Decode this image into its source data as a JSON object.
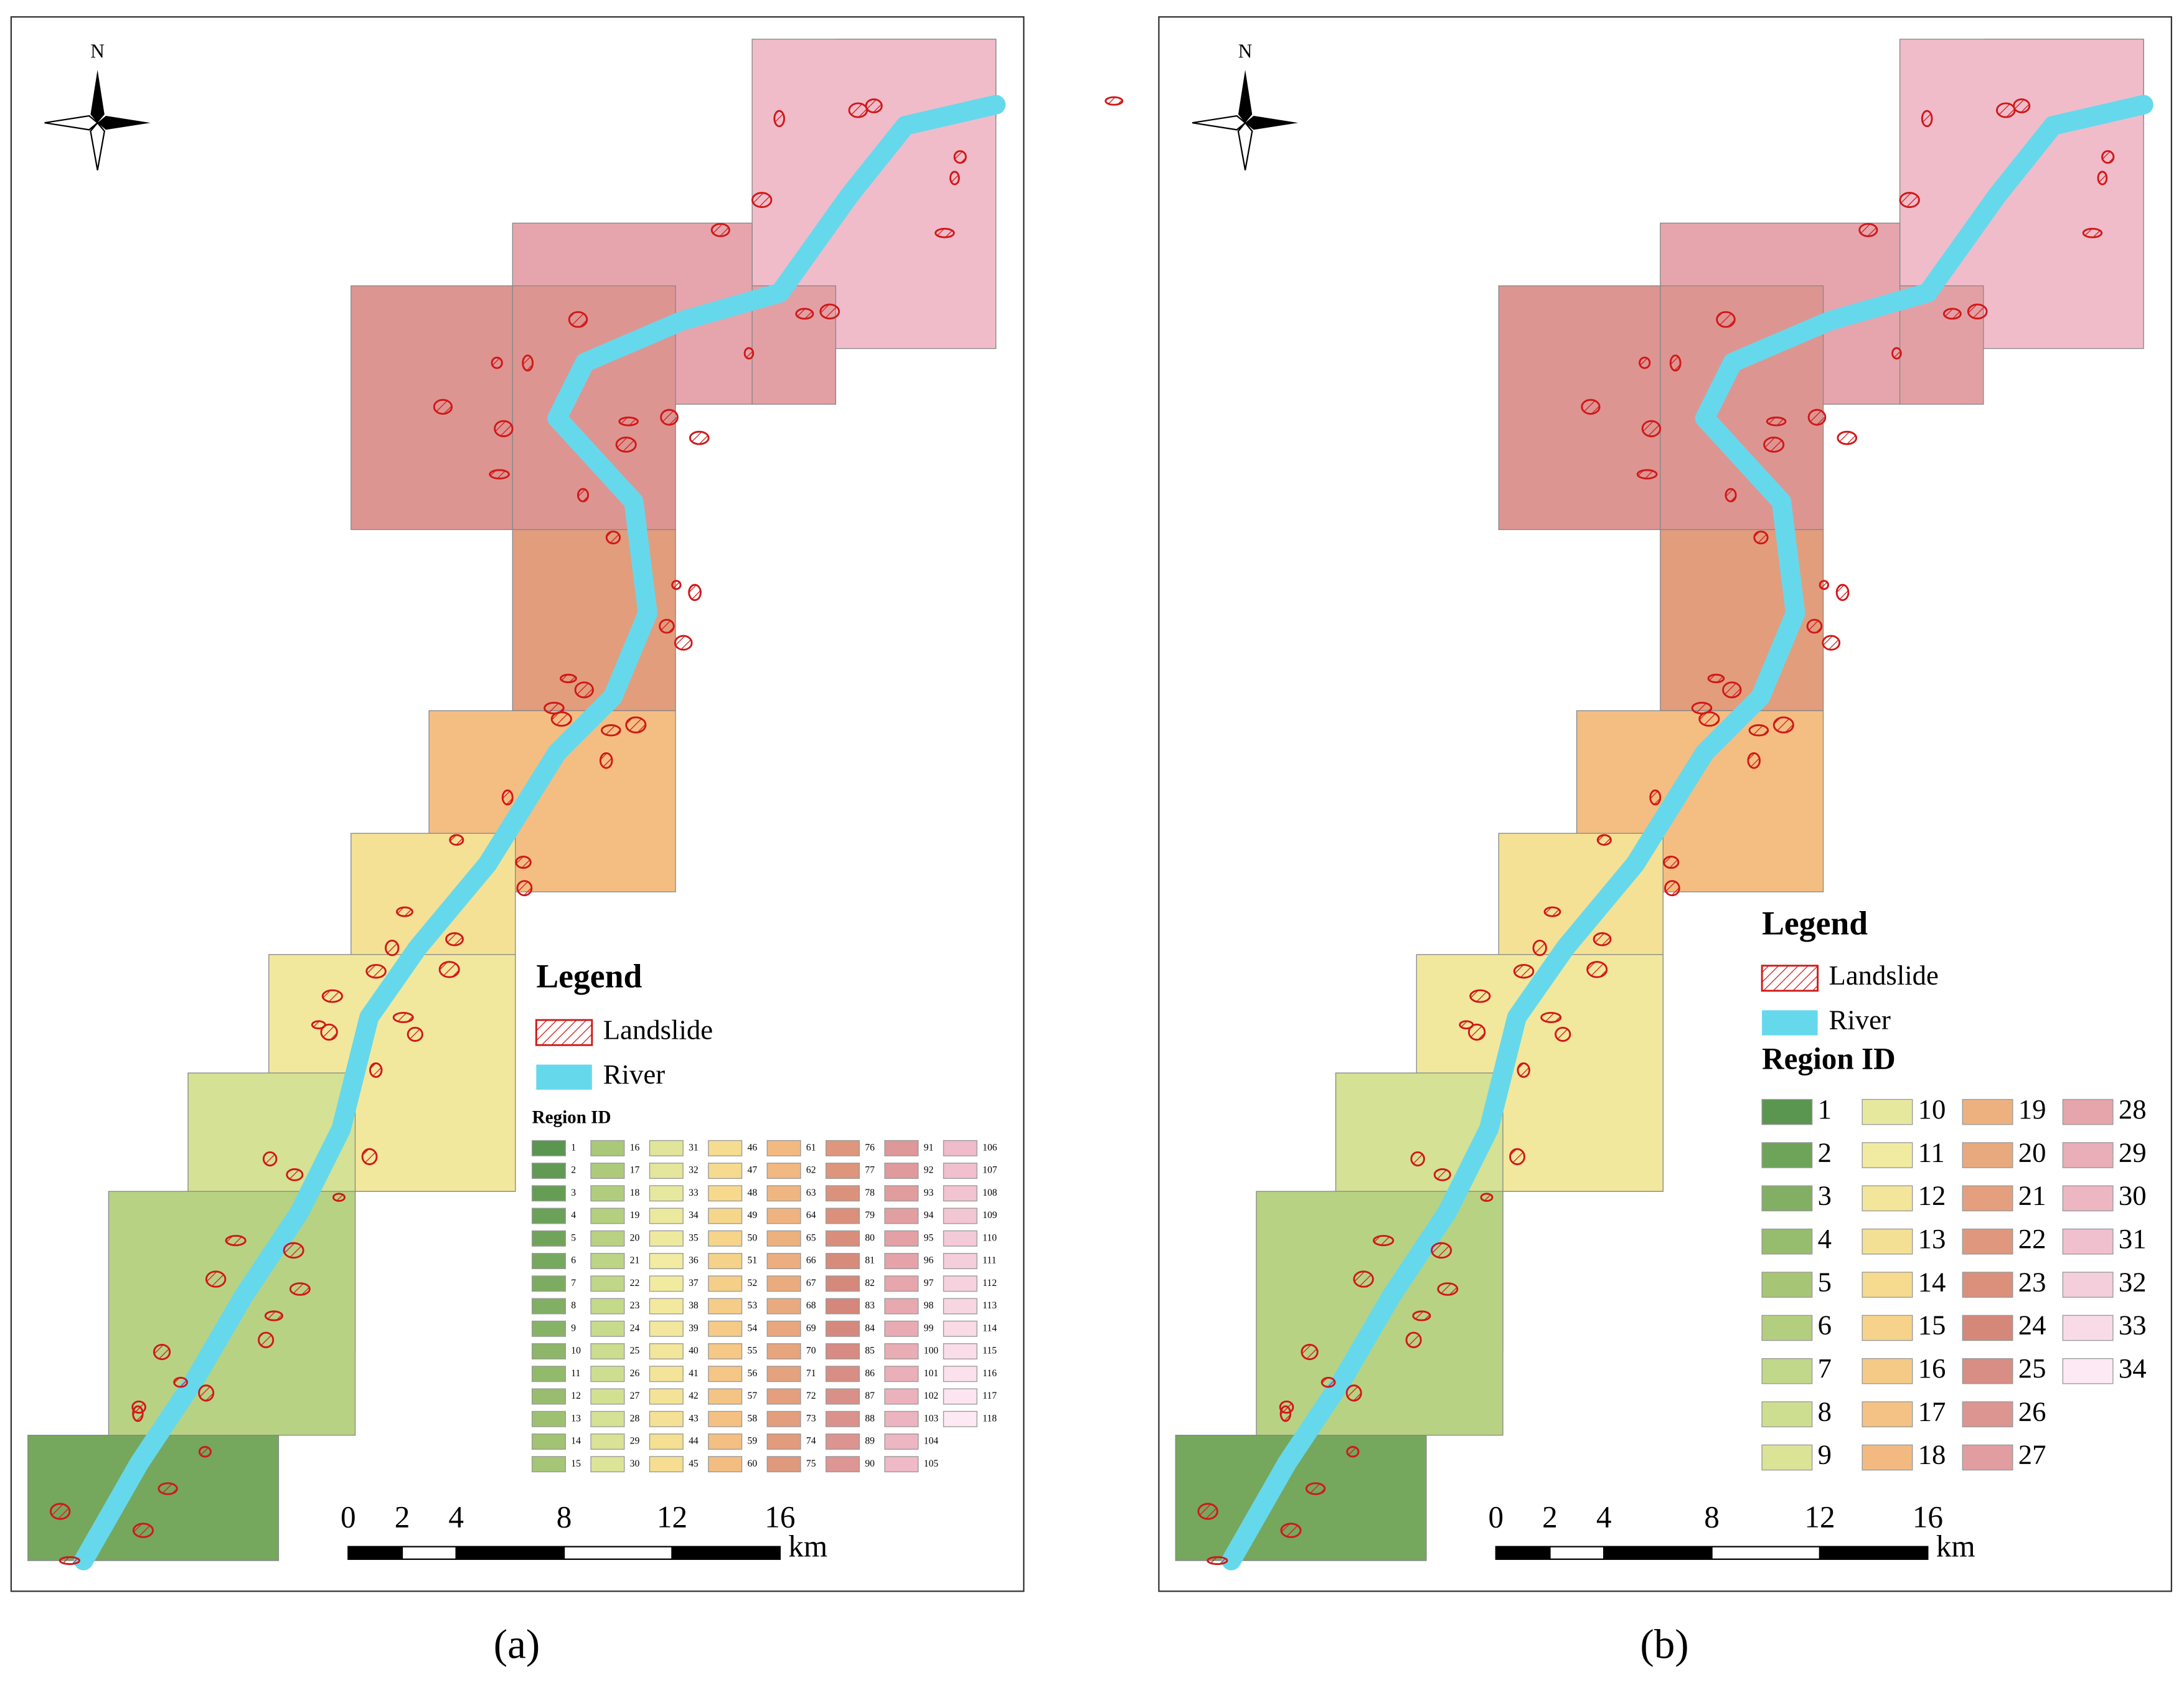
{
  "panels": [
    {
      "label": "(a)",
      "north": "N",
      "legend": {
        "title": "Legend",
        "items": [
          "Landslide",
          "River"
        ],
        "region_title": "Region ID",
        "region_ids": [
          1,
          2,
          3,
          4,
          5,
          6,
          7,
          8,
          9,
          10,
          11,
          12,
          13,
          14,
          15,
          16,
          17,
          18,
          19,
          20,
          21,
          22,
          23,
          24,
          25,
          26,
          27,
          28,
          29,
          30,
          31,
          32,
          33,
          34,
          35,
          36,
          37,
          38,
          39,
          40,
          41,
          42,
          43,
          44,
          45,
          46,
          47,
          48,
          49,
          50,
          51,
          52,
          53,
          54,
          55,
          56,
          57,
          58,
          59,
          60,
          61,
          62,
          63,
          64,
          65,
          66,
          67,
          68,
          69,
          70,
          71,
          72,
          73,
          74,
          75,
          76,
          77,
          78,
          79,
          80,
          81,
          82,
          83,
          84,
          85,
          86,
          87,
          88,
          89,
          90,
          91,
          92,
          93,
          94,
          95,
          96,
          97,
          98,
          99,
          100,
          101,
          102,
          103,
          104,
          105,
          106,
          107,
          108,
          109,
          110,
          111,
          112,
          113,
          114,
          115,
          116,
          117,
          118
        ]
      },
      "scale": {
        "ticks": [
          0,
          2,
          4,
          8,
          12,
          16
        ],
        "unit": "km"
      }
    },
    {
      "label": "(b)",
      "north": "N",
      "legend": {
        "title": "Legend",
        "items": [
          "Landslide",
          "River"
        ],
        "region_title": "Region ID",
        "region_ids": [
          1,
          2,
          3,
          4,
          5,
          6,
          7,
          8,
          9,
          10,
          11,
          12,
          13,
          14,
          15,
          16,
          17,
          18,
          19,
          20,
          21,
          22,
          23,
          24,
          25,
          26,
          27,
          28,
          29,
          30,
          31,
          32,
          33,
          34
        ]
      },
      "scale": {
        "ticks": [
          0,
          2,
          4,
          8,
          12,
          16
        ],
        "unit": "km"
      }
    }
  ]
}
